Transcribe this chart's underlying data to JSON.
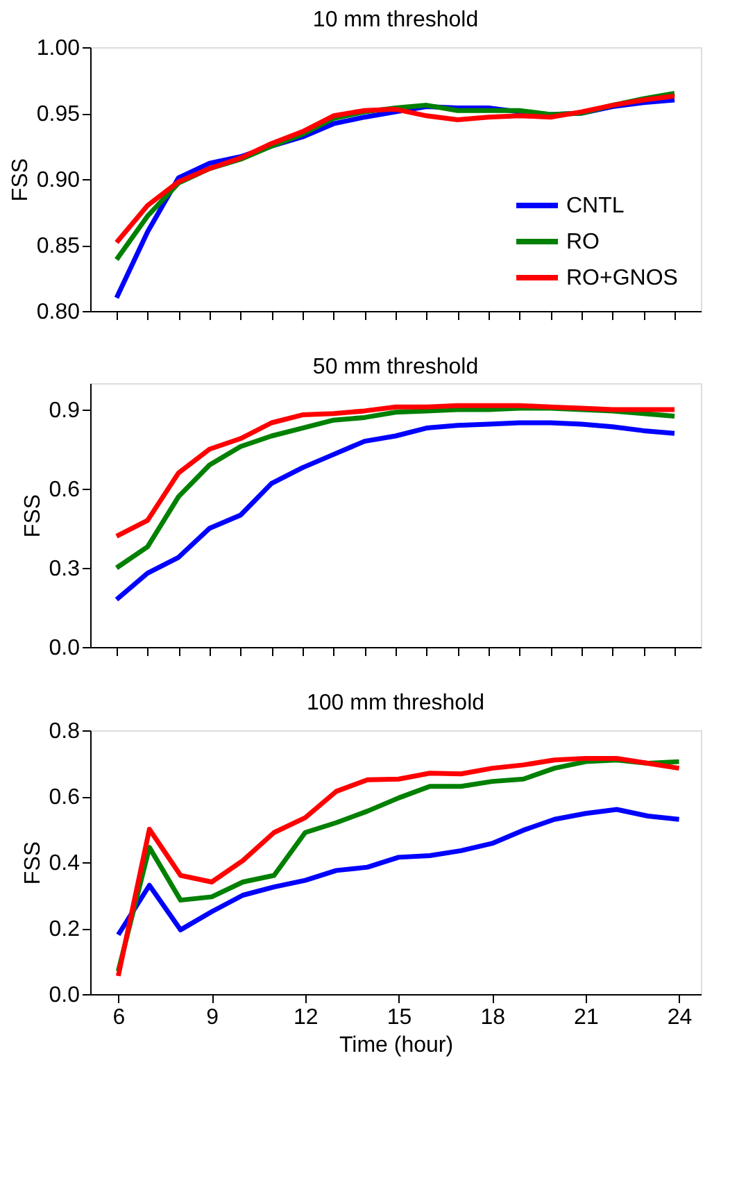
{
  "chart_data": [
    {
      "type": "line",
      "title": "10 mm threshold",
      "ylabel": "FSS",
      "categories": [
        null,
        null,
        null,
        null,
        null,
        null,
        null,
        null,
        null,
        null,
        null,
        null,
        null,
        null,
        null,
        null,
        null,
        null,
        null
      ],
      "ylim": [
        0.8,
        1.0
      ],
      "yticks": [
        {
          "value": 0.8,
          "label": "0.80"
        },
        {
          "value": 0.85,
          "label": "0.85"
        },
        {
          "value": 0.9,
          "label": "0.90"
        },
        {
          "value": 0.95,
          "label": "0.95"
        },
        {
          "value": 1.0,
          "label": "1.00"
        }
      ],
      "tick_labels": "y",
      "grid": false,
      "legend": "bottom right",
      "line_style": "solid",
      "series": [
        {
          "name": "CNTL",
          "color": "#0000ff",
          "values": [
            0.81,
            0.86,
            0.901,
            0.912,
            0.917,
            0.925,
            0.932,
            0.942,
            0.947,
            0.951,
            0.955,
            0.954,
            0.954,
            0.951,
            0.949,
            0.95,
            0.955,
            0.958,
            0.96
          ]
        },
        {
          "name": "RO",
          "color": "#008000",
          "values": [
            0.839,
            0.872,
            0.897,
            0.908,
            0.915,
            0.925,
            0.934,
            0.946,
            0.951,
            0.954,
            0.956,
            0.952,
            0.952,
            0.952,
            0.949,
            0.95,
            0.956,
            0.961,
            0.965
          ]
        },
        {
          "name": "RO+GNOS",
          "color": "#ff0000",
          "values": [
            0.852,
            0.88,
            0.898,
            0.908,
            0.916,
            0.927,
            0.936,
            0.948,
            0.952,
            0.953,
            0.948,
            0.945,
            0.947,
            0.948,
            0.947,
            0.951,
            0.956,
            0.96,
            0.963
          ]
        }
      ]
    },
    {
      "type": "line",
      "title": "50 mm threshold",
      "ylabel": "FSS",
      "categories": [
        null,
        null,
        null,
        null,
        null,
        null,
        null,
        null,
        null,
        null,
        null,
        null,
        null,
        null,
        null,
        null,
        null,
        null,
        null
      ],
      "ylim": [
        0.0,
        1.0
      ],
      "yticks": [
        {
          "value": 0,
          "label": "0.0"
        },
        {
          "value": 0.3,
          "label": "0.3"
        },
        {
          "value": 0.6,
          "label": "0.6"
        },
        {
          "value": 0.9,
          "label": "0.9"
        }
      ],
      "tick_labels": "y",
      "grid": false,
      "line_style": "solid",
      "series": [
        {
          "color": "#0000ff",
          "values": [
            0.18,
            0.28,
            0.34,
            0.45,
            0.5,
            0.62,
            0.68,
            0.73,
            0.78,
            0.8,
            0.83,
            0.84,
            0.845,
            0.85,
            0.85,
            0.845,
            0.835,
            0.82,
            0.81
          ]
        },
        {
          "color": "#008000",
          "values": [
            0.3,
            0.38,
            0.57,
            0.69,
            0.76,
            0.8,
            0.83,
            0.86,
            0.87,
            0.89,
            0.895,
            0.9,
            0.9,
            0.905,
            0.905,
            0.9,
            0.895,
            0.885,
            0.875
          ]
        },
        {
          "color": "#ff0000",
          "values": [
            0.42,
            0.48,
            0.66,
            0.75,
            0.79,
            0.85,
            0.88,
            0.885,
            0.895,
            0.91,
            0.91,
            0.915,
            0.915,
            0.915,
            0.91,
            0.905,
            0.9,
            0.9,
            0.9
          ]
        }
      ]
    },
    {
      "type": "line",
      "title": "100 mm threshold",
      "xlabel": "Time (hour)",
      "ylabel": "FSS",
      "x": [
        6,
        7,
        8,
        9,
        10,
        11,
        12,
        13,
        14,
        15,
        16,
        17,
        18,
        19,
        20,
        21,
        22,
        23,
        24
      ],
      "xlim": [
        5.1,
        24.7
      ],
      "xticks": [
        6,
        9,
        12,
        15,
        18,
        21,
        24
      ],
      "ylim": [
        0.0,
        0.8
      ],
      "yticks": [
        {
          "value": 0,
          "label": "0.0"
        },
        {
          "value": 0.2,
          "label": "0.2"
        },
        {
          "value": 0.4,
          "label": "0.4"
        },
        {
          "value": 0.6,
          "label": "0.6"
        },
        {
          "value": 0.8,
          "label": "0.8"
        }
      ],
      "grid": false,
      "line_style": "solid",
      "series": [
        {
          "color": "#0000ff",
          "values": [
            0.18,
            0.33,
            0.195,
            0.25,
            0.3,
            0.325,
            0.345,
            0.375,
            0.385,
            0.415,
            0.42,
            0.435,
            0.457,
            0.497,
            0.53,
            0.548,
            0.56,
            0.54,
            0.53
          ]
        },
        {
          "color": "#008000",
          "values": [
            0.07,
            0.445,
            0.285,
            0.295,
            0.34,
            0.36,
            0.49,
            0.52,
            0.555,
            0.595,
            0.63,
            0.63,
            0.645,
            0.652,
            0.685,
            0.705,
            0.71,
            0.7,
            0.705
          ]
        },
        {
          "color": "#ff0000",
          "values": [
            0.055,
            0.5,
            0.36,
            0.34,
            0.405,
            0.49,
            0.535,
            0.615,
            0.65,
            0.652,
            0.67,
            0.668,
            0.685,
            0.695,
            0.71,
            0.715,
            0.715,
            0.7,
            0.685
          ]
        }
      ]
    }
  ]
}
